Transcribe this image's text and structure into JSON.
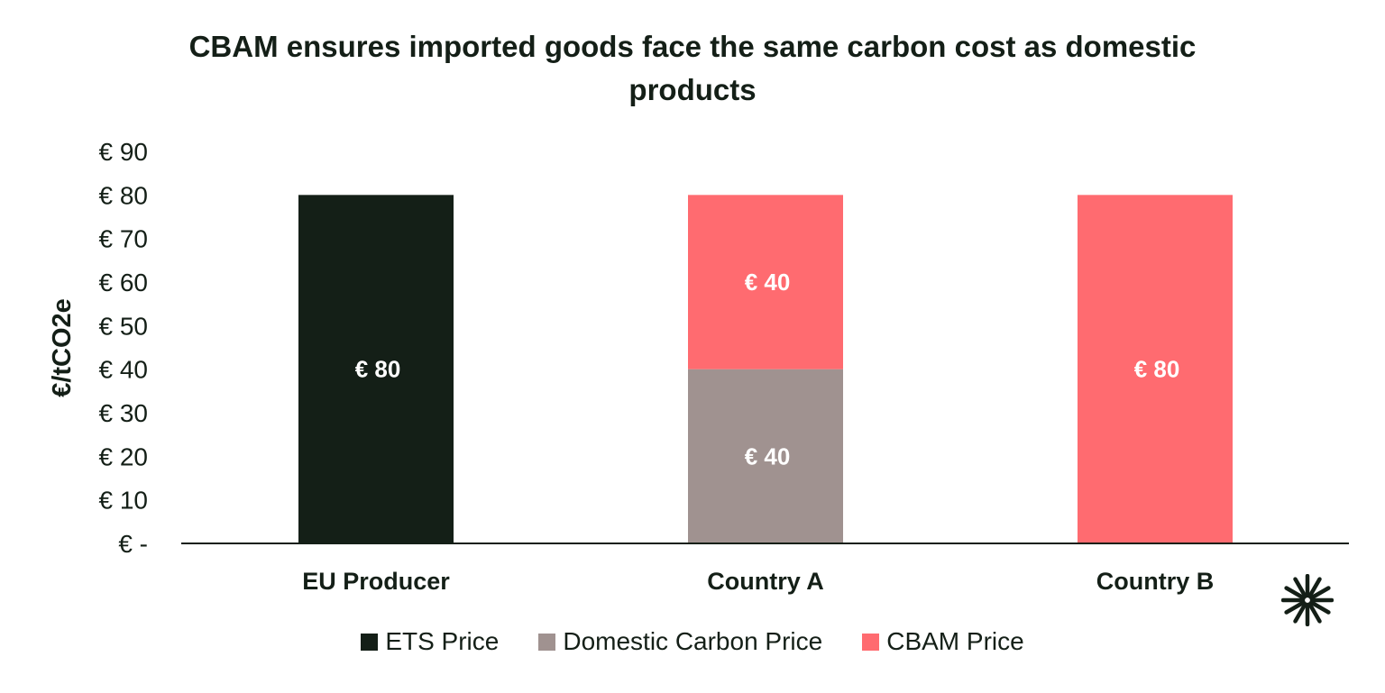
{
  "chart_data": {
    "type": "bar",
    "stacked": true,
    "title": "CBAM ensures imported goods face the same carbon cost as domestic products",
    "ylabel": "€/tCO2e",
    "xlabel": "",
    "ylim": [
      0,
      90
    ],
    "yticks": [
      0,
      10,
      20,
      30,
      40,
      50,
      60,
      70,
      80,
      90
    ],
    "ytick_labels": [
      "€ -",
      "€ 10",
      "€ 20",
      "€ 30",
      "€ 40",
      "€ 50",
      "€ 60",
      "€ 70",
      "€ 80",
      "€ 90"
    ],
    "categories": [
      "EU Producer",
      "Country A",
      "Country B"
    ],
    "series": [
      {
        "name": "ETS Price",
        "color": "#141f17",
        "values": [
          80,
          0,
          0
        ],
        "labels": [
          "€ 80",
          "",
          ""
        ]
      },
      {
        "name": "Domestic Carbon Price",
        "color": "#a09290",
        "values": [
          0,
          40,
          0
        ],
        "labels": [
          "",
          "€ 40",
          ""
        ]
      },
      {
        "name": "CBAM Price",
        "color": "#ff6b70",
        "values": [
          0,
          40,
          80
        ],
        "labels": [
          "",
          "€ 40",
          "€ 80"
        ]
      }
    ],
    "legend_position": "bottom",
    "grid": false
  },
  "logo": {
    "icon": "asterisk-burst-logo-icon"
  }
}
